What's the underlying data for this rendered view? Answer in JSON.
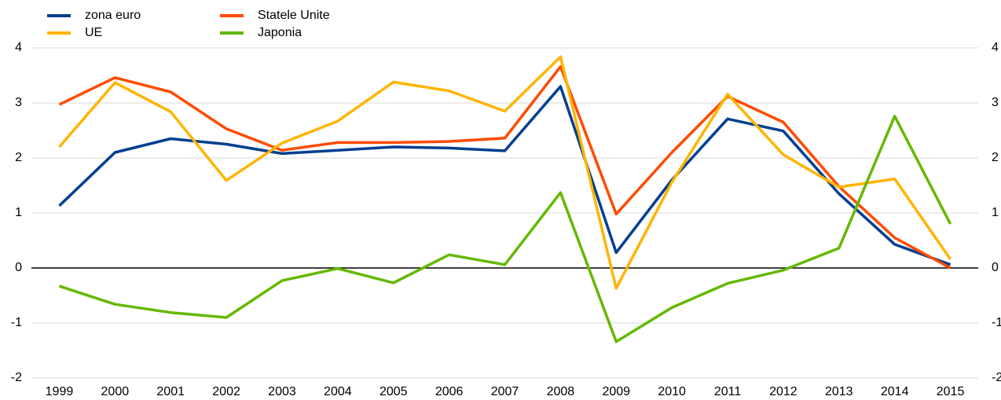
{
  "chart_data": {
    "type": "line",
    "categories": [
      "1999",
      "2000",
      "2001",
      "2002",
      "2003",
      "2004",
      "2005",
      "2006",
      "2007",
      "2008",
      "2009",
      "2010",
      "2011",
      "2012",
      "2013",
      "2014",
      "2015"
    ],
    "series": [
      {
        "name": "zona euro",
        "color": "#003f8f",
        "values": [
          1.13,
          2.1,
          2.35,
          2.25,
          2.08,
          2.14,
          2.2,
          2.18,
          2.13,
          3.3,
          0.28,
          1.6,
          2.71,
          2.49,
          1.35,
          0.43,
          0.06
        ]
      },
      {
        "name": "Statele Unite",
        "color": "#ff4b00",
        "values": [
          2.97,
          3.46,
          3.2,
          2.53,
          2.14,
          2.28,
          2.28,
          2.3,
          2.36,
          3.66,
          0.98,
          2.1,
          3.12,
          2.65,
          1.48,
          0.55,
          0.0
        ]
      },
      {
        "name": "UE",
        "color": "#ffb400",
        "values": [
          2.2,
          3.37,
          2.84,
          1.59,
          2.27,
          2.67,
          3.38,
          3.22,
          2.85,
          3.84,
          -0.37,
          1.56,
          3.16,
          2.06,
          1.47,
          1.62,
          0.16
        ]
      },
      {
        "name": "Japonia",
        "color": "#65b800",
        "values": [
          -0.33,
          -0.66,
          -0.81,
          -0.9,
          -0.23,
          -0.01,
          -0.27,
          0.24,
          0.06,
          1.37,
          -1.34,
          -0.72,
          -0.28,
          -0.04,
          0.36,
          2.76,
          0.8
        ]
      }
    ],
    "ylim": [
      -2,
      4
    ],
    "yticks": [
      -2,
      -1,
      0,
      1,
      2,
      3,
      4
    ],
    "grid": true,
    "legend": "top-left"
  }
}
